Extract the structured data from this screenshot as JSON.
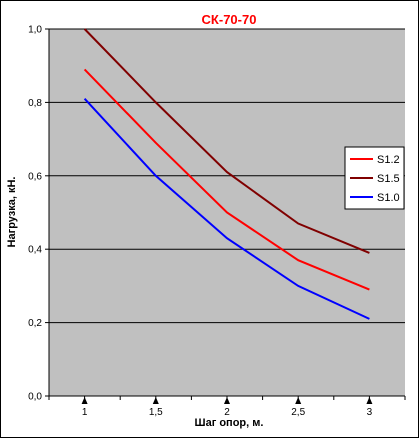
{
  "chart_data": {
    "type": "line",
    "title": "СК-70-70",
    "title_color": "#ff0000",
    "xlabel": "Шаг опор, м.",
    "ylabel": "Нагрузка, кН.",
    "xlim": [
      0.75,
      3.25
    ],
    "ylim": [
      0,
      1
    ],
    "x_ticks": [
      1,
      1.5,
      2,
      2.5,
      3
    ],
    "x_tick_labels": [
      "1",
      "1,5",
      "2",
      "2,5",
      "3"
    ],
    "y_ticks": [
      0,
      0.2,
      0.4,
      0.6,
      0.8,
      1.0
    ],
    "y_tick_labels": [
      "0,0",
      "0,2",
      "0,4",
      "0,6",
      "0,8",
      "1,0"
    ],
    "grid": "horizontal",
    "plot_background": "#c0c0c0",
    "legend_position": "right",
    "x": [
      1,
      1.5,
      2,
      2.5,
      3
    ],
    "series": [
      {
        "name": "S1.2",
        "color": "#ff0000",
        "values": [
          0.89,
          0.69,
          0.5,
          0.37,
          0.29
        ]
      },
      {
        "name": "S1.5",
        "color": "#800000",
        "values": [
          1.0,
          0.8,
          0.61,
          0.47,
          0.39
        ]
      },
      {
        "name": "S1.0",
        "color": "#0000ff",
        "values": [
          0.81,
          0.6,
          0.43,
          0.3,
          0.21
        ]
      }
    ]
  }
}
